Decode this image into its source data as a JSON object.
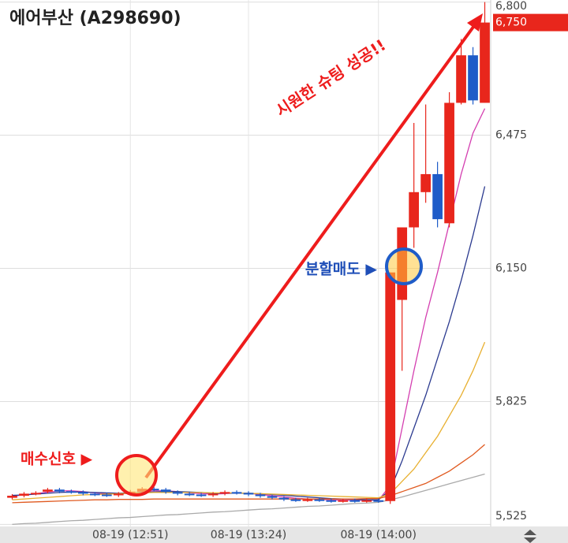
{
  "chart_data": {
    "type": "candlestick",
    "title": "에어부산 (A298690)",
    "categories": [
      null,
      null,
      null,
      null,
      null,
      null,
      null,
      null,
      null,
      null,
      "08-19 (12:51)",
      null,
      null,
      null,
      null,
      null,
      null,
      null,
      null,
      null,
      "08-19 (13:24)",
      null,
      null,
      null,
      null,
      null,
      null,
      null,
      null,
      null,
      null,
      "08-19 (14:00)",
      null,
      null,
      null,
      null,
      null,
      null,
      null,
      null,
      null
    ],
    "open": [
      5590,
      5595,
      5600,
      5605,
      5610,
      5606,
      5604,
      5600,
      5598,
      5596,
      5600,
      5605,
      5612,
      5610,
      5604,
      5600,
      5598,
      5596,
      5600,
      5604,
      5602,
      5598,
      5594,
      5590,
      5586,
      5584,
      5586,
      5584,
      5582,
      5584,
      5582,
      5584,
      5582,
      6073,
      6250,
      6336,
      6380,
      6260,
      6554,
      6670,
      6554
    ],
    "high": [
      5599,
      5604,
      5606,
      5614,
      5614,
      5610,
      5608,
      5604,
      5602,
      5604,
      5609,
      5616,
      5616,
      5614,
      5608,
      5604,
      5602,
      5604,
      5608,
      5608,
      5606,
      5602,
      5598,
      5594,
      5590,
      5590,
      5590,
      5588,
      5588,
      5588,
      5588,
      5588,
      6140,
      6250,
      6505,
      6550,
      6410,
      6580,
      6710,
      6690,
      6800
    ],
    "low": [
      5586,
      5591,
      5596,
      5601,
      5601,
      5600,
      5596,
      5594,
      5592,
      5592,
      5596,
      5601,
      5606,
      5600,
      5596,
      5594,
      5592,
      5592,
      5596,
      5598,
      5594,
      5590,
      5586,
      5582,
      5580,
      5580,
      5580,
      5578,
      5578,
      5578,
      5578,
      5578,
      5575,
      5900,
      6200,
      6310,
      6250,
      6250,
      6550,
      6550,
      6554
    ],
    "close": [
      5595,
      5600,
      5602,
      5610,
      5605,
      5604,
      5600,
      5598,
      5596,
      5600,
      5605,
      5612,
      5610,
      5604,
      5600,
      5598,
      5596,
      5600,
      5604,
      5602,
      5598,
      5594,
      5590,
      5586,
      5584,
      5586,
      5584,
      5582,
      5584,
      5582,
      5584,
      5582,
      6140,
      6250,
      6336,
      6380,
      6270,
      6554,
      6670,
      6560,
      6750
    ],
    "up_color": "#e8261c",
    "down_color": "#1f5cc8",
    "moving_averages": [
      {
        "color": "#d43fb0",
        "values": [
          5594,
          5597,
          5600,
          5604,
          5607,
          5607,
          5605,
          5602,
          5600,
          5599,
          5601,
          5604,
          5607,
          5607,
          5605,
          5602,
          5600,
          5599,
          5600,
          5602,
          5601,
          5598,
          5595,
          5592,
          5589,
          5587,
          5586,
          5585,
          5584,
          5584,
          5584,
          5584,
          5620,
          5760,
          5900,
          6030,
          6140,
          6260,
          6380,
          6480,
          6540
        ]
      },
      {
        "color": "#2b3a8f",
        "values": [
          5596,
          5597,
          5599,
          5601,
          5603,
          5604,
          5604,
          5603,
          5602,
          5601,
          5602,
          5603,
          5604,
          5605,
          5605,
          5604,
          5603,
          5601,
          5601,
          5601,
          5601,
          5600,
          5598,
          5596,
          5594,
          5592,
          5590,
          5588,
          5587,
          5586,
          5585,
          5585,
          5610,
          5680,
          5760,
          5840,
          5930,
          6020,
          6120,
          6230,
          6350
        ]
      },
      {
        "color": "#e8b030",
        "values": [
          5585,
          5587,
          5589,
          5591,
          5593,
          5595,
          5597,
          5598,
          5599,
          5600,
          5601,
          5602,
          5603,
          5603,
          5603,
          5603,
          5603,
          5602,
          5602,
          5602,
          5601,
          5600,
          5599,
          5598,
          5597,
          5596,
          5595,
          5594,
          5593,
          5592,
          5591,
          5590,
          5600,
          5630,
          5660,
          5700,
          5740,
          5790,
          5840,
          5900,
          5970
        ]
      },
      {
        "color": "#e05a20",
        "values": [
          5578,
          5579,
          5580,
          5581,
          5582,
          5583,
          5584,
          5585,
          5585,
          5586,
          5586,
          5586,
          5587,
          5587,
          5587,
          5587,
          5587,
          5587,
          5587,
          5587,
          5587,
          5587,
          5587,
          5587,
          5587,
          5587,
          5587,
          5587,
          5587,
          5587,
          5588,
          5588,
          5595,
          5605,
          5615,
          5625,
          5640,
          5655,
          5675,
          5695,
          5720
        ]
      },
      {
        "color": "#aaaaaa",
        "values": [
          5525,
          5527,
          5528,
          5530,
          5532,
          5534,
          5535,
          5537,
          5539,
          5541,
          5542,
          5544,
          5546,
          5548,
          5549,
          5551,
          5553,
          5555,
          5556,
          5558,
          5560,
          5562,
          5563,
          5565,
          5567,
          5569,
          5570,
          5572,
          5574,
          5576,
          5577,
          5579,
          5585,
          5592,
          5600,
          5608,
          5616,
          5624,
          5632,
          5640,
          5648
        ]
      }
    ],
    "ylim": [
      5520,
      6805
    ],
    "yticks": [
      {
        "value": 6800,
        "label": "6,800"
      },
      {
        "value": 6475,
        "label": "6,475"
      },
      {
        "value": 6150,
        "label": "6,150"
      },
      {
        "value": 5825,
        "label": "5,825"
      },
      {
        "value": 5525,
        "label": "5,525"
      }
    ],
    "grid": true,
    "last_price": {
      "value": 6750,
      "label": "6,750"
    },
    "annotations": {
      "shooting": "시원한 슈팅 성공!!",
      "sell": "분할매도 ▶",
      "buy": "매수신호 ▶"
    }
  }
}
